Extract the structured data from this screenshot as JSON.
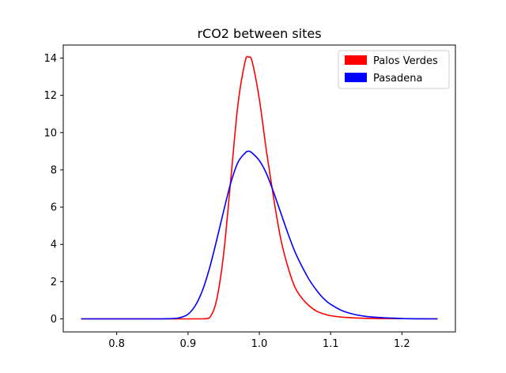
{
  "chart_data": {
    "type": "line",
    "title": "rCO2 between sites",
    "xlabel": "",
    "ylabel": "",
    "xlim": [
      0.725,
      1.275
    ],
    "ylim": [
      -0.7,
      14.7
    ],
    "xticks": [
      0.8,
      0.9,
      1.0,
      1.1,
      1.2
    ],
    "xtick_labels": [
      "0.8",
      "0.9",
      "1.0",
      "1.1",
      "1.2"
    ],
    "yticks": [
      0,
      2,
      4,
      6,
      8,
      10,
      12,
      14
    ],
    "ytick_labels": [
      "0",
      "2",
      "4",
      "6",
      "8",
      "10",
      "12",
      "14"
    ],
    "grid": false,
    "legend_position": "top-right",
    "series": [
      {
        "name": "Palos Verdes",
        "color": "#ff0000",
        "x": [
          0.75,
          0.9,
          0.92,
          0.93,
          0.94,
          0.95,
          0.96,
          0.97,
          0.98,
          0.985,
          0.99,
          1.0,
          1.01,
          1.02,
          1.03,
          1.04,
          1.05,
          1.06,
          1.07,
          1.08,
          1.09,
          1.1,
          1.12,
          1.15,
          1.2,
          1.25
        ],
        "y": [
          0,
          0,
          0,
          0.05,
          1.0,
          3.5,
          7.5,
          11.5,
          13.8,
          14.05,
          13.8,
          11.8,
          9.0,
          6.5,
          4.3,
          2.8,
          1.7,
          1.1,
          0.7,
          0.42,
          0.27,
          0.17,
          0.08,
          0.03,
          0.01,
          0
        ]
      },
      {
        "name": "Pasadena",
        "color": "#0000ff",
        "x": [
          0.75,
          0.85,
          0.88,
          0.89,
          0.9,
          0.91,
          0.92,
          0.93,
          0.94,
          0.95,
          0.96,
          0.97,
          0.98,
          0.985,
          0.99,
          1.0,
          1.01,
          1.02,
          1.03,
          1.04,
          1.05,
          1.06,
          1.07,
          1.08,
          1.09,
          1.1,
          1.12,
          1.15,
          1.2,
          1.25
        ],
        "y": [
          0,
          0,
          0.02,
          0.08,
          0.25,
          0.7,
          1.5,
          2.7,
          4.2,
          5.8,
          7.3,
          8.4,
          8.9,
          9.0,
          8.9,
          8.5,
          7.8,
          6.8,
          5.7,
          4.6,
          3.6,
          2.8,
          2.1,
          1.55,
          1.1,
          0.78,
          0.38,
          0.13,
          0.02,
          0
        ]
      }
    ]
  }
}
